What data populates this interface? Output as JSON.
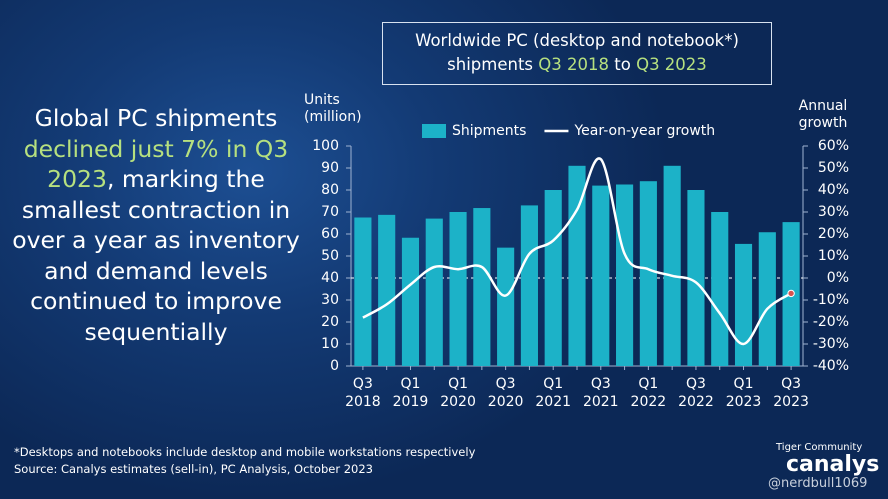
{
  "headline": [
    "Global PC shipments ",
    "declined just 7% in Q3 2023",
    ", marking the smallest contraction in over a year as inventory and demand levels continued to improve sequentially"
  ],
  "title": [
    "Worldwide PC (desktop and notebook*)",
    "shipments ",
    "Q3 2018",
    " to ",
    "Q3 2023"
  ],
  "footnotes": [
    "*Desktops and notebooks  include desktop and mobile workstations respectively",
    "Source:  Canalys estimates (sell-in), PC Analysis, October 2023"
  ],
  "logo": {
    "tagline": "Tiger Community",
    "brand": "canalys"
  },
  "watermark": "@nerdbull1069",
  "chart_data": {
    "type": "bar",
    "y_label": "Units (million)",
    "y2_label": "Annual growth",
    "legend": "top",
    "categories": [
      "Q3 2018",
      null,
      "Q1 2019",
      null,
      "Q1 2020",
      null,
      "Q3 2020",
      null,
      "Q1 2021",
      null,
      "Q3 2021",
      null,
      "Q1 2022",
      null,
      "Q3 2022",
      null,
      "Q1 2023",
      null,
      "Q3 2023"
    ],
    "series": [
      {
        "name": "Shipments",
        "color": "#1cb2c8",
        "values": [
          67.5,
          68.7,
          58.3,
          67,
          70,
          71.8,
          53.8,
          73,
          80,
          91,
          82,
          82.5,
          84,
          91,
          80,
          70,
          55.5,
          60.8,
          65.4
        ]
      },
      {
        "name": "Year-on-year growth",
        "type": "line",
        "axis": "y2",
        "color": "#ffffff",
        "values": [
          -18,
          -12,
          -3,
          5,
          4,
          5,
          -8,
          11,
          17,
          31,
          54,
          11,
          4,
          1,
          -2,
          -16,
          -30,
          -14,
          -7
        ]
      }
    ],
    "ylim": [
      0,
      100
    ],
    "yticks": [
      0,
      10,
      20,
      30,
      40,
      50,
      60,
      70,
      80,
      90,
      100
    ],
    "y2lim": [
      -40,
      60
    ],
    "y2ticks": [
      {
        "value": -40,
        "label": "-40%"
      },
      {
        "value": -30,
        "label": "-30%"
      },
      {
        "value": -20,
        "label": "-20%"
      },
      {
        "value": -10,
        "label": "-10%"
      },
      {
        "value": 0,
        "label": "0%"
      },
      {
        "value": 10,
        "label": "10%"
      },
      {
        "value": 20,
        "label": "20%"
      },
      {
        "value": 30,
        "label": "30%"
      },
      {
        "value": 40,
        "label": "40%"
      },
      {
        "value": 50,
        "label": "50%"
      },
      {
        "value": 60,
        "label": "60%"
      }
    ],
    "y2_zero_line": true
  }
}
